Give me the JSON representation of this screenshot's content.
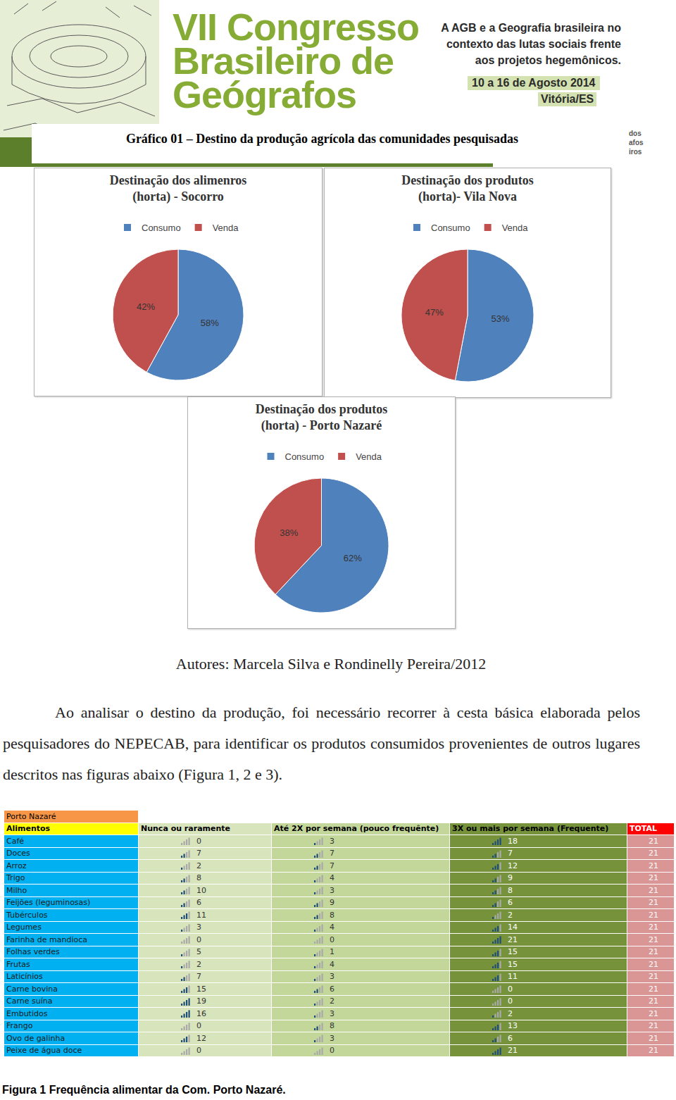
{
  "header": {
    "title_lines": [
      "VII Congresso",
      "Brasileiro de",
      "Geógrafos"
    ],
    "theme_lines": [
      "A AGB e a Geografia brasileira no",
      "contexto das lutas sociais frente",
      "aos projetos hegemônicos."
    ],
    "date": "10 a 16 de Agosto 2014",
    "place": "Vitória/ES",
    "side_fragments": [
      "dos",
      "afos",
      "iros"
    ]
  },
  "caption": "Gráfico 01 – Destino da produção agrícola das comunidades pesquisadas",
  "chart_data": [
    {
      "type": "pie",
      "title": [
        "Destinação dos alimenros",
        "(horta) - Socorro"
      ],
      "categories": [
        "Consumo",
        "Venda"
      ],
      "values": [
        58,
        42
      ],
      "value_labels": [
        "58%",
        "42%"
      ],
      "colors": [
        "#4f81bd",
        "#c0504d"
      ],
      "data_labels": true,
      "legend": "top"
    },
    {
      "type": "pie",
      "title": [
        "Destinação dos produtos",
        "(horta)- Vila Nova"
      ],
      "categories": [
        "Consumo",
        "Venda"
      ],
      "values": [
        53,
        47
      ],
      "value_labels": [
        "53%",
        "47%"
      ],
      "colors": [
        "#4f81bd",
        "#c0504d"
      ],
      "data_labels": true,
      "legend": "top"
    },
    {
      "type": "pie",
      "title": [
        "Destinação dos produtos",
        "(horta) - Porto Nazaré"
      ],
      "categories": [
        "Consumo",
        "Venda"
      ],
      "values": [
        62,
        38
      ],
      "value_labels": [
        "62%",
        "38%"
      ],
      "colors": [
        "#4f81bd",
        "#c0504d"
      ],
      "data_labels": true,
      "legend": "top"
    }
  ],
  "authors": "Autores: Marcela Silva e Rondinelly Pereira/2012",
  "paragraph": "Ao analisar o destino da produção, foi necessário recorrer à cesta básica elaborada pelos pesquisadores do NEPECAB, para identificar os produtos consumidos provenientes de outros lugares descritos nas figuras abaixo (Figura 1, 2 e 3).",
  "table": {
    "title": "Porto Nazaré",
    "columns": [
      "Alimentos",
      "Nunca ou raramente",
      "Até 2X por semana (pouco frequênte)",
      "3X ou mais por semana (Frequente)",
      "TOTAL"
    ],
    "rows": [
      [
        "Café",
        0,
        3,
        18,
        21
      ],
      [
        "Doces",
        7,
        7,
        7,
        21
      ],
      [
        "Arroz",
        2,
        7,
        12,
        21
      ],
      [
        "Trigo",
        8,
        4,
        9,
        21
      ],
      [
        "Milho",
        10,
        3,
        8,
        21
      ],
      [
        "Feijões (leguminosas)",
        6,
        9,
        6,
        21
      ],
      [
        "Tubérculos",
        11,
        8,
        2,
        21
      ],
      [
        "Legumes",
        3,
        4,
        14,
        21
      ],
      [
        "Farinha de mandioca",
        0,
        0,
        21,
        21
      ],
      [
        "Folhas verdes",
        5,
        1,
        15,
        21
      ],
      [
        "Frutas",
        2,
        4,
        15,
        21
      ],
      [
        "Laticínios",
        7,
        3,
        11,
        21
      ],
      [
        "Carne bovina",
        15,
        6,
        0,
        21
      ],
      [
        "Carne suína",
        19,
        2,
        0,
        21
      ],
      [
        "Embutidos",
        16,
        3,
        2,
        21
      ],
      [
        "Frango",
        0,
        8,
        13,
        21
      ],
      [
        "Ovo de galinha",
        12,
        3,
        6,
        21
      ],
      [
        "Peixe de água doce",
        0,
        0,
        21,
        21
      ]
    ]
  },
  "figure_caption": "Figura 1 Frequência alimentar da Com. Porto Nazaré."
}
